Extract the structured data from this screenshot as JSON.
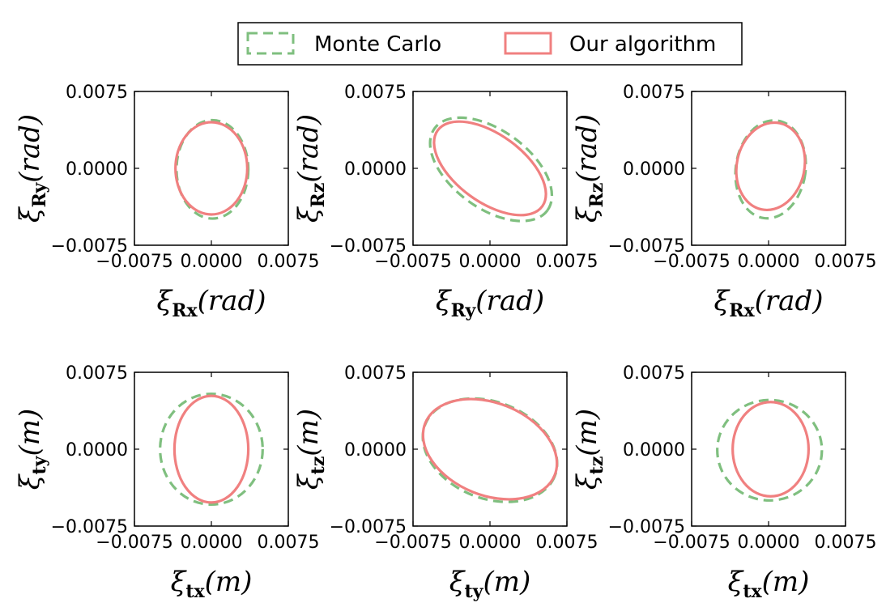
{
  "legend": {
    "placement": "top-center",
    "items": [
      {
        "label": "Monte Carlo",
        "color": "#7fbf7f",
        "style": "dashed"
      },
      {
        "label": "Our algorithm",
        "color": "#f08080",
        "style": "solid"
      }
    ]
  },
  "chart_data": [
    {
      "type": "line",
      "xlim": [
        -0.0075,
        0.0075
      ],
      "ylim": [
        -0.0075,
        0.0075
      ],
      "xticks": [
        "−0.0075",
        "0.0000",
        "0.0075"
      ],
      "yticks": [
        "−0.0075",
        "0.0000",
        "0.0075"
      ],
      "xlabel": {
        "sym": "ξ",
        "sub": "Rx",
        "unit": "(rad)"
      },
      "ylabel": {
        "sym": "ξ",
        "sub": "Ry",
        "unit": "(rad)"
      },
      "series": [
        {
          "name": "Monte Carlo",
          "center": [
            0.0001,
            -0.0001
          ],
          "radii": [
            0.0035,
            0.0048
          ],
          "angle_deg": 0
        },
        {
          "name": "Our algorithm",
          "center": [
            0.0,
            0.0
          ],
          "radii": [
            0.0035,
            0.0045
          ],
          "angle_deg": 0
        }
      ]
    },
    {
      "type": "line",
      "xlim": [
        -0.0075,
        0.0075
      ],
      "ylim": [
        -0.0075,
        0.0075
      ],
      "xticks": [
        "−0.0075",
        "0.0000",
        "0.0075"
      ],
      "yticks": [
        "−0.0075",
        "0.0000",
        "0.0075"
      ],
      "xlabel": {
        "sym": "ξ",
        "sub": "Ry",
        "unit": "(rad)"
      },
      "ylabel": {
        "sym": "ξ",
        "sub": "Rz",
        "unit": "(rad)"
      },
      "series": [
        {
          "name": "Monte Carlo",
          "center": [
            0.0001,
            -0.0001
          ],
          "radii": [
            0.0068,
            0.0038
          ],
          "angle_deg": -36
        },
        {
          "name": "Our algorithm",
          "center": [
            0.0,
            0.0
          ],
          "radii": [
            0.0063,
            0.0033
          ],
          "angle_deg": -36
        }
      ]
    },
    {
      "type": "line",
      "xlim": [
        -0.0075,
        0.0075
      ],
      "ylim": [
        -0.0075,
        0.0075
      ],
      "xticks": [
        "−0.0075",
        "0.0000",
        "0.0075"
      ],
      "yticks": [
        "−0.0075",
        "0.0000",
        "0.0075"
      ],
      "xlabel": {
        "sym": "ξ",
        "sub": "Rx",
        "unit": "(rad)"
      },
      "ylabel": {
        "sym": "ξ",
        "sub": "Rz",
        "unit": "(rad)"
      },
      "series": [
        {
          "name": "Monte Carlo",
          "center": [
            0.0002,
            -0.0001
          ],
          "radii": [
            0.0034,
            0.0048
          ],
          "angle_deg": -8
        },
        {
          "name": "Our algorithm",
          "center": [
            0.0002,
            0.0002
          ],
          "radii": [
            0.0033,
            0.0043
          ],
          "angle_deg": -12
        }
      ]
    },
    {
      "type": "line",
      "xlim": [
        -0.0075,
        0.0075
      ],
      "ylim": [
        -0.0075,
        0.0075
      ],
      "xticks": [
        "−0.0075",
        "0.0000",
        "0.0075"
      ],
      "yticks": [
        "−0.0075",
        "0.0000",
        "0.0075"
      ],
      "xlabel": {
        "sym": "ξ",
        "sub": "tx",
        "unit": "(m)"
      },
      "ylabel": {
        "sym": "ξ",
        "sub": "ty",
        "unit": "(m)"
      },
      "series": [
        {
          "name": "Monte Carlo",
          "center": [
            0.0,
            0.0
          ],
          "radii": [
            0.005,
            0.0054
          ],
          "angle_deg": 0
        },
        {
          "name": "Our algorithm",
          "center": [
            0.0,
            0.0
          ],
          "radii": [
            0.0036,
            0.0052
          ],
          "angle_deg": 0
        }
      ]
    },
    {
      "type": "line",
      "xlim": [
        -0.0075,
        0.0075
      ],
      "ylim": [
        -0.0075,
        0.0075
      ],
      "xticks": [
        "−0.0075",
        "0.0000",
        "0.0075"
      ],
      "yticks": [
        "−0.0075",
        "0.0000",
        "0.0075"
      ],
      "xlabel": {
        "sym": "ξ",
        "sub": "ty",
        "unit": "(m)"
      },
      "ylabel": {
        "sym": "ξ",
        "sub": "tz",
        "unit": "(m)"
      },
      "series": [
        {
          "name": "Monte Carlo",
          "center": [
            0.0,
            -0.0001
          ],
          "radii": [
            0.0068,
            0.0047
          ],
          "angle_deg": -22
        },
        {
          "name": "Our algorithm",
          "center": [
            0.0,
            0.0
          ],
          "radii": [
            0.0068,
            0.0045
          ],
          "angle_deg": -22
        }
      ]
    },
    {
      "type": "line",
      "xlim": [
        -0.0075,
        0.0075
      ],
      "ylim": [
        -0.0075,
        0.0075
      ],
      "xticks": [
        "−0.0075",
        "0.0000",
        "0.0075"
      ],
      "yticks": [
        "−0.0075",
        "0.0000",
        "0.0075"
      ],
      "xlabel": {
        "sym": "ξ",
        "sub": "tx",
        "unit": "(m)"
      },
      "ylabel": {
        "sym": "ξ",
        "sub": "tz",
        "unit": "(m)"
      },
      "series": [
        {
          "name": "Monte Carlo",
          "center": [
            0.0001,
            -0.0001
          ],
          "radii": [
            0.0051,
            0.0049
          ],
          "angle_deg": 0
        },
        {
          "name": "Our algorithm",
          "center": [
            0.0002,
            0.0
          ],
          "radii": [
            0.0037,
            0.0046
          ],
          "angle_deg": 0
        }
      ]
    }
  ]
}
